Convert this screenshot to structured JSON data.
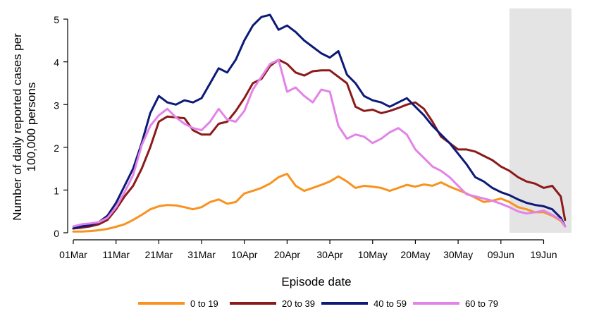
{
  "chart_data": {
    "type": "line",
    "title": "",
    "xlabel": "Episode date",
    "ylabel_lines": [
      "Number of daily reported cases per",
      "100,000 persons"
    ],
    "x_start_date": "2020-03-01",
    "x_tick_labels": [
      "01Mar",
      "11Mar",
      "21Mar",
      "31Mar",
      "10Apr",
      "20Apr",
      "30Apr",
      "10May",
      "20May",
      "30May",
      "09Jun",
      "19Jun"
    ],
    "xlim_days": [
      0,
      118
    ],
    "ylim": [
      0,
      5.15
    ],
    "yticks": [
      0,
      1,
      2,
      3,
      4,
      5
    ],
    "shaded_region_days": [
      102,
      116.5
    ],
    "shaded_color": "#e4e4e4",
    "grid": false,
    "legend_position": "bottom",
    "x_day_offsets": [
      0,
      2,
      4,
      6,
      8,
      10,
      12,
      14,
      16,
      18,
      20,
      22,
      24,
      26,
      28,
      30,
      32,
      34,
      36,
      38,
      40,
      42,
      44,
      46,
      48,
      50,
      52,
      54,
      56,
      58,
      60,
      62,
      64,
      66,
      68,
      70,
      72,
      74,
      76,
      78,
      80,
      82,
      84,
      86,
      88,
      90,
      92,
      94,
      96,
      98,
      100,
      102,
      104,
      106,
      108,
      110,
      112,
      114,
      115
    ],
    "series": [
      {
        "name": "0 to 19",
        "color": "#f7931e",
        "values": [
          0.03,
          0.03,
          0.04,
          0.06,
          0.09,
          0.14,
          0.2,
          0.3,
          0.42,
          0.55,
          0.62,
          0.65,
          0.64,
          0.6,
          0.55,
          0.6,
          0.72,
          0.78,
          0.68,
          0.72,
          0.92,
          0.98,
          1.05,
          1.15,
          1.3,
          1.38,
          1.1,
          0.98,
          1.05,
          1.12,
          1.2,
          1.32,
          1.2,
          1.05,
          1.1,
          1.08,
          1.05,
          0.98,
          1.05,
          1.12,
          1.08,
          1.13,
          1.1,
          1.18,
          1.08,
          1.0,
          0.92,
          0.82,
          0.72,
          0.75,
          0.8,
          0.72,
          0.6,
          0.55,
          0.48,
          0.48,
          0.4,
          0.28,
          0.15
        ]
      },
      {
        "name": "20 to 39",
        "color": "#8b1a1a",
        "values": [
          0.1,
          0.12,
          0.15,
          0.2,
          0.3,
          0.55,
          0.85,
          1.1,
          1.5,
          2.0,
          2.6,
          2.72,
          2.7,
          2.68,
          2.4,
          2.3,
          2.3,
          2.55,
          2.6,
          2.85,
          3.15,
          3.5,
          3.6,
          3.9,
          4.05,
          3.95,
          3.75,
          3.68,
          3.78,
          3.8,
          3.8,
          3.65,
          3.5,
          2.95,
          2.85,
          2.88,
          2.8,
          2.85,
          2.92,
          3.0,
          3.05,
          2.9,
          2.6,
          2.25,
          2.1,
          1.95,
          1.95,
          1.9,
          1.8,
          1.7,
          1.55,
          1.45,
          1.3,
          1.2,
          1.15,
          1.05,
          1.1,
          0.85,
          0.3
        ]
      },
      {
        "name": "40 to 59",
        "color": "#0c1a78",
        "values": [
          0.1,
          0.15,
          0.18,
          0.25,
          0.4,
          0.7,
          1.1,
          1.5,
          2.1,
          2.8,
          3.2,
          3.05,
          3.0,
          3.1,
          3.05,
          3.15,
          3.5,
          3.85,
          3.75,
          4.05,
          4.5,
          4.85,
          5.05,
          5.1,
          4.75,
          4.85,
          4.7,
          4.5,
          4.35,
          4.2,
          4.1,
          4.25,
          3.7,
          3.5,
          3.2,
          3.1,
          3.05,
          2.95,
          3.05,
          3.15,
          2.95,
          2.75,
          2.5,
          2.3,
          2.1,
          1.85,
          1.6,
          1.3,
          1.2,
          1.05,
          0.95,
          0.88,
          0.78,
          0.7,
          0.65,
          0.62,
          0.55,
          0.35,
          0.15
        ]
      },
      {
        "name": "60 to 79",
        "color": "#e383e8",
        "values": [
          0.15,
          0.2,
          0.22,
          0.25,
          0.35,
          0.6,
          0.95,
          1.35,
          2.05,
          2.5,
          2.75,
          2.9,
          2.7,
          2.55,
          2.45,
          2.4,
          2.6,
          2.9,
          2.65,
          2.6,
          2.85,
          3.35,
          3.65,
          3.95,
          4.05,
          3.3,
          3.4,
          3.2,
          3.05,
          3.35,
          3.3,
          2.5,
          2.2,
          2.3,
          2.25,
          2.1,
          2.2,
          2.35,
          2.45,
          2.3,
          1.95,
          1.75,
          1.55,
          1.45,
          1.3,
          1.1,
          0.9,
          0.85,
          0.8,
          0.75,
          0.68,
          0.6,
          0.5,
          0.45,
          0.48,
          0.52,
          0.42,
          0.3,
          0.15
        ]
      }
    ]
  }
}
